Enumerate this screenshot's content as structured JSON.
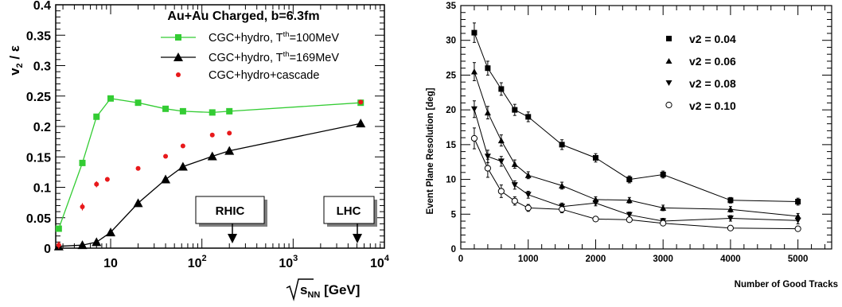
{
  "chart_data": [
    {
      "type": "scatter",
      "title": "Au+Au Charged, b=6.3fm",
      "ylabel_num": "v",
      "ylabel_num_sub": "2",
      "ylabel_den": " / ε",
      "xlabel_rad": "s",
      "xlabel_sub": "NN",
      "xlabel_unit": " [GeV]",
      "xscale": "log",
      "xlim": [
        2.5,
        10000
      ],
      "ylim": [
        0,
        0.4
      ],
      "xticks": [
        10,
        100,
        1000,
        10000
      ],
      "xticklabels": [
        {
          "base": "10",
          "exp": ""
        },
        {
          "base": "10",
          "exp": "2"
        },
        {
          "base": "10",
          "exp": "3"
        },
        {
          "base": "10",
          "exp": "4"
        }
      ],
      "yticks": [
        "0",
        "0.05",
        "0.1",
        "0.15",
        "0.2",
        "0.25",
        "0.3",
        "0.35",
        "0.4"
      ],
      "legend": {
        "position": "top-right",
        "entries": [
          {
            "pre": "CGC+hydro, T",
            "sup": "th",
            "post": "=100MeV"
          },
          {
            "pre": "CGC+hydro, T",
            "sup": "th",
            "post": "=169MeV"
          },
          {
            "pre": "CGC+hydro+cascade",
            "sup": "",
            "post": ""
          }
        ]
      },
      "annotations": [
        {
          "text": "RHIC",
          "x": 200
        },
        {
          "text": "LHC",
          "x": 5500
        }
      ],
      "series": [
        {
          "name": "CGC+hydro, Tth=100MeV",
          "color": "#33cc33",
          "marker": "square",
          "line": true,
          "x": [
            2.7,
            4.9,
            7.0,
            10,
            20,
            40,
            62,
            130,
            200,
            5500
          ],
          "y": [
            0.032,
            0.14,
            0.216,
            0.246,
            0.239,
            0.229,
            0.225,
            0.223,
            0.225,
            0.239
          ]
        },
        {
          "name": "CGC+hydro, Tth=169MeV",
          "color": "#000000",
          "marker": "triangle",
          "line": true,
          "x": [
            2.7,
            4.9,
            7.0,
            10,
            20,
            40,
            62,
            130,
            200,
            5500
          ],
          "y": [
            0.003,
            0.005,
            0.01,
            0.026,
            0.074,
            0.113,
            0.134,
            0.151,
            0.16,
            0.205
          ]
        },
        {
          "name": "CGC+hydro+cascade",
          "color": "#e8191b",
          "marker": "circle",
          "line": false,
          "x": [
            2.7,
            4.9,
            7.0,
            9.2,
            20,
            40,
            62,
            130,
            200,
            5500
          ],
          "y": [
            0.005,
            0.068,
            0.105,
            0.113,
            0.131,
            0.151,
            0.168,
            0.186,
            0.189,
            0.24
          ],
          "err": [
            0.006,
            0.006,
            0.005,
            0.004,
            0.0,
            0.0,
            0.0,
            0.0,
            0.0,
            0.0
          ]
        }
      ]
    },
    {
      "type": "line",
      "title": "",
      "xlabel": "Number of Good Tracks",
      "ylabel": "Event Plane Resolution [deg]",
      "xlim": [
        0,
        5500
      ],
      "ylim": [
        0,
        35
      ],
      "xticks": [
        "0",
        "1000",
        "2000",
        "3000",
        "4000",
        "5000"
      ],
      "yticks": [
        "0",
        "5",
        "10",
        "15",
        "20",
        "25",
        "30",
        "35"
      ],
      "legend": {
        "position": "top-right",
        "entries": [
          "v2 = 0.04",
          "v2 = 0.06",
          "v2 = 0.08",
          "v2 = 0.10"
        ]
      },
      "x": [
        200,
        400,
        600,
        800,
        1000,
        1500,
        2000,
        2500,
        3000,
        4000,
        5000
      ],
      "series": [
        {
          "name": "v2 = 0.04",
          "marker": "square",
          "y": [
            31.1,
            26.0,
            23.0,
            20.0,
            19.0,
            15.0,
            13.1,
            10.0,
            10.7,
            7.0,
            6.8
          ],
          "err": [
            1.4,
            1.0,
            0.9,
            0.8,
            0.7,
            0.7,
            0.6,
            0.5,
            0.5,
            0.4,
            0.5
          ]
        },
        {
          "name": "v2 = 0.06",
          "marker": "triangle-up",
          "y": [
            25.5,
            19.6,
            15.6,
            12.2,
            10.6,
            9.1,
            7.1,
            7.0,
            5.9,
            5.7,
            4.7
          ],
          "err": [
            1.3,
            0.9,
            0.8,
            0.6,
            0.5,
            0.5,
            0.4,
            0.4,
            0.4,
            0.4,
            0.4
          ]
        },
        {
          "name": "v2 = 0.08",
          "marker": "triangle-down",
          "y": [
            20.1,
            13.3,
            12.6,
            9.2,
            7.8,
            6.1,
            6.6,
            4.9,
            4.0,
            4.4,
            4.1
          ],
          "err": [
            1.2,
            0.9,
            0.7,
            0.6,
            0.5,
            0.5,
            0.4,
            0.4,
            0.4,
            0.4,
            0.5
          ]
        },
        {
          "name": "v2 = 0.10",
          "marker": "circle-open",
          "y": [
            15.9,
            11.6,
            8.3,
            6.9,
            5.9,
            5.7,
            4.3,
            4.2,
            3.7,
            3.0,
            2.9
          ],
          "err": [
            1.5,
            1.3,
            0.9,
            0.6,
            0.5,
            0.5,
            0.3,
            0.3,
            0.3,
            0.3,
            0.2
          ]
        }
      ]
    }
  ]
}
